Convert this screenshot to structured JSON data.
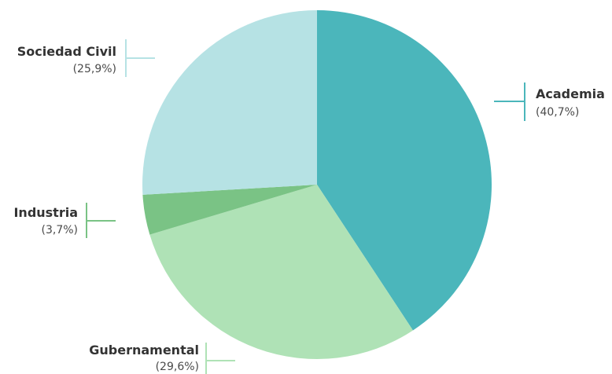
{
  "chart_data": {
    "type": "pie",
    "start_angle": "12 o'clock, clockwise",
    "slices": [
      {
        "label": "Academia",
        "value": 40.7,
        "value_label": "(40,7%)",
        "color": "#4bb6bb"
      },
      {
        "label": "Gubernamental",
        "value": 29.6,
        "value_label": "(29,6%)",
        "color": "#afe2b6"
      },
      {
        "label": "Industria",
        "value": 3.7,
        "value_label": "(3,7%)",
        "color": "#7ac385"
      },
      {
        "label": "Sociedad Civil",
        "value": 25.9,
        "value_label": "(25,9%)",
        "color": "#b6e2e4"
      }
    ]
  }
}
